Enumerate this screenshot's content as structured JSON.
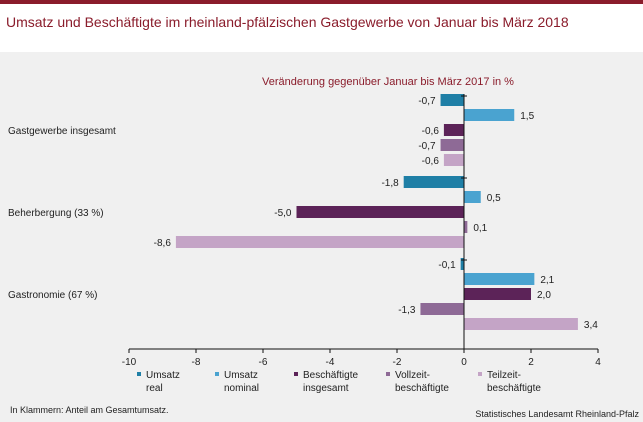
{
  "header": {
    "title": "Umsatz und Beschäftigte im rheinland-pfälzischen Gastgewerbe von Januar bis März 2018",
    "accent_color": "#8a1c2b"
  },
  "chart_data": {
    "type": "bar",
    "orientation": "horizontal",
    "subtitle": "Veränderung gegenüber Januar bis März 2017 in %",
    "categories": [
      "Gastgewerbe insgesamt",
      "Beherbergung (33 %)",
      "Gastronomie (67 %)"
    ],
    "series": [
      {
        "name": [
          "Umsatz",
          "real"
        ],
        "color": "#1f7fa6",
        "values": [
          -0.7,
          -1.8,
          -0.1
        ],
        "labels": [
          "-0,7",
          "-1,8",
          "-0,1"
        ]
      },
      {
        "name": [
          "Umsatz",
          "nominal"
        ],
        "color": "#4aa3d0",
        "values": [
          1.5,
          0.5,
          2.1
        ],
        "labels": [
          "1,5",
          "0,5",
          "2,1"
        ]
      },
      {
        "name": [
          "Beschäftigte",
          "insgesamt"
        ],
        "color": "#5c2358",
        "values": [
          -0.6,
          -5.0,
          2.0
        ],
        "labels": [
          "-0,6",
          "-5,0",
          "2,0"
        ]
      },
      {
        "name": [
          "Vollzeit-",
          "beschäftigte"
        ],
        "color": "#8e6a96",
        "values": [
          -0.7,
          0.1,
          -1.3
        ],
        "labels": [
          "-0,7",
          "0,1",
          "-1,3"
        ]
      },
      {
        "name": [
          "Teilzeit-",
          "beschäftigte"
        ],
        "color": "#c4a4c6",
        "values": [
          -0.6,
          -8.6,
          3.4
        ],
        "labels": [
          "-0,6",
          "-8,6",
          "3,4"
        ]
      }
    ],
    "xlim": [
      -10,
      4
    ],
    "xticks": [
      -10,
      -8,
      -6,
      -4,
      -2,
      0,
      2,
      4
    ],
    "xtick_labels": [
      "-10",
      "-8",
      "-6",
      "-4",
      "-2",
      "0",
      "2",
      "4"
    ],
    "grid": false,
    "legend_position": "bottom"
  },
  "footer": {
    "footnote": "In Klammern: Anteil am Gesamtumsatz.",
    "source": "Statistisches Landesamt Rheinland-Pfalz"
  }
}
